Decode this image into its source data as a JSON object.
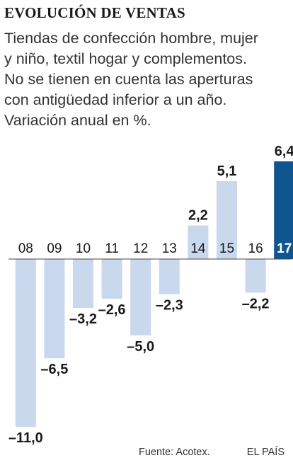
{
  "header": {
    "title": "EVOLUCIÓN DE VENTAS",
    "subtitle_lines": [
      "Tiendas de confección hombre, mujer",
      "y niño, textil hogar y complementos.",
      "No se tienen en cuenta las aperturas",
      "con antigüedad inferior a un año.",
      "Variación anual en %."
    ]
  },
  "footer": {
    "source": "Fuente: Acotex.",
    "brand": "EL PAÍS"
  },
  "chart_data": {
    "type": "bar",
    "categories": [
      "08",
      "09",
      "10",
      "11",
      "12",
      "13",
      "14",
      "15",
      "16",
      "17"
    ],
    "values": [
      -11.0,
      -6.5,
      -3.2,
      -2.6,
      -5.0,
      -2.3,
      2.2,
      5.1,
      -2.2,
      6.4
    ],
    "value_labels": [
      "–11,0",
      "–6,5",
      "–3,2",
      "–2,6",
      "–5,0",
      "–2,3",
      "2,2",
      "5,1",
      "–2,2",
      "6,4"
    ],
    "highlight_index": 9,
    "colors": {
      "bar": "#c9d8ec",
      "highlight": "#11558f",
      "highlight_text": "#ffffff"
    },
    "ylim": [
      -11.0,
      6.4
    ],
    "grid": false
  }
}
